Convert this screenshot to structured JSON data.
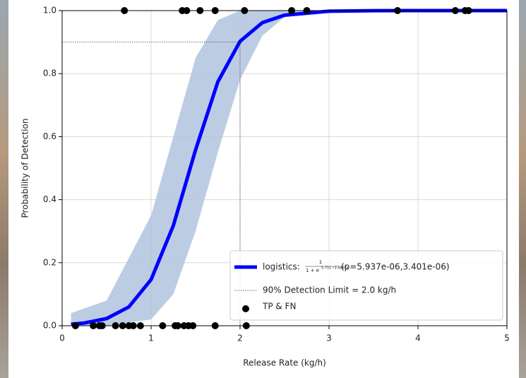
{
  "chart_data": {
    "type": "logistic",
    "xlabel": "Release Rate (kg/h)",
    "ylabel": "Probability of Detection",
    "xlim": [
      0,
      5
    ],
    "ylim": [
      0,
      1
    ],
    "xticks": [
      0,
      1,
      2,
      3,
      4,
      5
    ],
    "yticks": [
      {
        "value": 0,
        "label": "0.0"
      },
      {
        "value": 0.2,
        "label": "0.2"
      },
      {
        "value": 0.4,
        "label": "0.4"
      },
      {
        "value": 0.6,
        "label": "0.6"
      },
      {
        "value": 0.8,
        "label": "0.8"
      },
      {
        "value": 1,
        "label": "1.0"
      }
    ],
    "grid": true,
    "band": {
      "color": "#b0c4de",
      "x": [
        0.1,
        0.5,
        1.0,
        1.25,
        1.5,
        1.75,
        2.0,
        2.25,
        2.5,
        3.0,
        5.0
      ],
      "upper": [
        0.04,
        0.08,
        0.35,
        0.6,
        0.85,
        0.97,
        1.0,
        1.0,
        1.0,
        1.0,
        1.0
      ],
      "lower": [
        0,
        0,
        0.02,
        0.1,
        0.3,
        0.55,
        0.78,
        0.92,
        0.98,
        1.0,
        1.0
      ]
    },
    "curve": {
      "name": "logistics:",
      "formula_numerator": "1",
      "formula_denominator": "1 + e",
      "formula_exponent": "5.751−3.989*x",
      "params": "(p=5.937e-06,3.401e-06)",
      "color": "#0000ff",
      "x": [
        0.1,
        0.25,
        0.5,
        0.75,
        1.0,
        1.25,
        1.5,
        1.75,
        2.0,
        2.25,
        2.5,
        3.0,
        3.5,
        4.0,
        5.0
      ],
      "values": [
        0.0047,
        0.0085,
        0.0228,
        0.0596,
        0.1465,
        0.3176,
        0.5579,
        0.7738,
        0.9026,
        0.9617,
        0.9855,
        0.998,
        0.9997,
        1.0,
        1.0
      ]
    },
    "limit": {
      "name": "90% Detection Limit =  2.0 kg/h",
      "x": 2.0,
      "y": 0.9
    },
    "points": {
      "name": "TP & FN",
      "color": "#000000",
      "x": [
        0.7,
        1.35,
        1.4,
        1.55,
        1.72,
        2.05,
        2.58,
        2.75,
        3.77,
        4.42,
        4.53,
        4.57,
        0.15,
        0.35,
        0.42,
        0.45,
        0.6,
        0.68,
        0.75,
        0.8,
        0.88,
        1.13,
        1.27,
        1.3,
        1.37,
        1.42,
        1.47,
        1.72,
        2.07
      ],
      "values": [
        1,
        1,
        1,
        1,
        1,
        1,
        1,
        1,
        1,
        1,
        1,
        1,
        0,
        0,
        0,
        0,
        0,
        0,
        0,
        0,
        0,
        0,
        0,
        0,
        0,
        0,
        0,
        0,
        0
      ]
    }
  }
}
